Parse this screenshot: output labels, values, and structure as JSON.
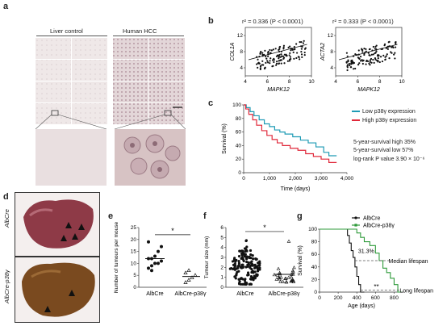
{
  "panels": {
    "a": {
      "label": "a",
      "col_left": "Liver control",
      "col_right": "Human HCC"
    },
    "b": {
      "label": "b",
      "left": {
        "title": "r² = 0.336 (P < 0.0001)",
        "ylabel": "COL1A",
        "xlabel": "MAPK12",
        "xticks": [
          "4",
          "6",
          "8",
          "10"
        ],
        "yticks": [
          "4",
          "8",
          "12"
        ]
      },
      "right": {
        "title": "r² = 0.333 (P < 0.0001)",
        "ylabel": "ACTA2",
        "xlabel": "MAPK12",
        "xticks": [
          "4",
          "6",
          "8",
          "10"
        ],
        "yticks": [
          "4",
          "8",
          "12"
        ]
      }
    },
    "c": {
      "label": "c",
      "ylabel": "Survival (%)",
      "xlabel": "Time (days)",
      "xticks": [
        "0",
        "1,000",
        "2,000",
        "3,000",
        "4,000"
      ],
      "yticks": [
        "0",
        "20",
        "40",
        "60",
        "80",
        "100"
      ],
      "legend_low": "Low p38γ expression",
      "legend_high": "High p38γ expression",
      "stat1": "5-year-survival high 35%",
      "stat2": "5-year-survival low 57%",
      "stat3": "log-rank P value 3.90 × 10⁻⁶",
      "color_low": "#1f9bb5",
      "color_high": "#e0283a"
    },
    "d": {
      "label": "d",
      "top_label": "AlbCre",
      "bottom_label": "AlbCre-p38γ"
    },
    "e": {
      "label": "e",
      "ylabel": "Number of tumours per mouse",
      "yticks": [
        "0",
        "5",
        "10",
        "15",
        "20",
        "25"
      ],
      "cat1": "AlbCre",
      "cat2": "AlbCre-p38γ",
      "sig": "*"
    },
    "f": {
      "label": "f",
      "ylabel": "Tumour size (mm)",
      "yticks": [
        "0",
        "1",
        "2",
        "3",
        "4",
        "5",
        "6"
      ],
      "cat1": "AlbCre",
      "cat2": "AlbCre-p38γ",
      "sig": "*"
    },
    "g": {
      "label": "g",
      "ylabel": "Survival (%)",
      "xlabel": "Age (days)",
      "xticks": [
        "0",
        "200",
        "400",
        "600",
        "800"
      ],
      "yticks": [
        "0",
        "20",
        "40",
        "60",
        "80",
        "100"
      ],
      "legend1": "AlbCre",
      "legend2": "AlbCre-p38γ",
      "pct": "31.3%",
      "median": "Median lifespan",
      "long": "Long lifespan",
      "stars": "**",
      "color1": "#111111",
      "color2": "#2e9a3a"
    }
  }
}
